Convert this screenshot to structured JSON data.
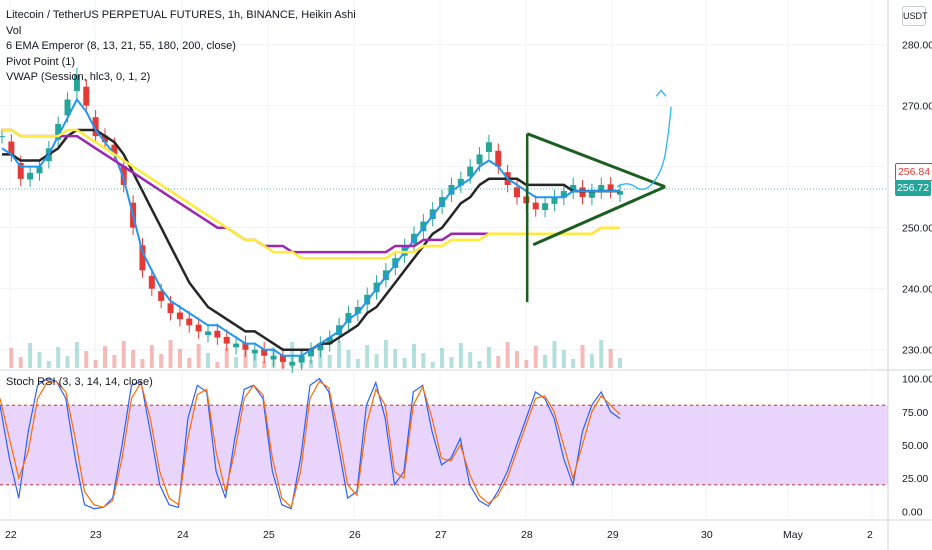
{
  "header": {
    "title": "Litecoin / TetherUS PERPETUAL FUTURES, 1h, BINANCE, Heikin Ashi",
    "indicators": [
      "Vol",
      "6 EMA Emperor (8, 13, 21, 55, 180, 200, close)",
      "Pivot Point (1)",
      "VWAP (Session, hlc3, 0, 1, 2)"
    ]
  },
  "currency_button": "USDT",
  "price_tags": {
    "last_high": "256.84",
    "last_close": "256.72"
  },
  "stoch_label": "Stoch RSI (3, 3, 14, 14, close)",
  "colors": {
    "up": "#26a69a",
    "down": "#e53935",
    "ema_black": "#262626",
    "ema_blue": "#2196f3",
    "ema_purple": "#9c27b0",
    "ema_yellow": "#ffeb3b",
    "triangle": "#1b5e20",
    "stoch_k": "#2962ff",
    "stoch_d": "#ff6d00",
    "stoch_band": "#e1c7fa"
  },
  "chart_data": [
    {
      "type": "line",
      "x_ticks": [
        "22",
        "23",
        "24",
        "25",
        "26",
        "27",
        "28",
        "29",
        "30",
        "May",
        "2"
      ],
      "y_ticks": [
        "230.00",
        "240.00",
        "250.00",
        "260.00",
        "270.00",
        "280.00"
      ],
      "ylim": [
        227,
        286
      ],
      "series": [
        {
          "style": "candle_close",
          "values": [
            265,
            262,
            258,
            259,
            260,
            263,
            267,
            271,
            275,
            270,
            265,
            264,
            262,
            257,
            250,
            243,
            240,
            238,
            236,
            235,
            234,
            233,
            233,
            232,
            231,
            231,
            230,
            230,
            229,
            229,
            228,
            228,
            229,
            230,
            231,
            232,
            234,
            236,
            237,
            239,
            241,
            243,
            245,
            247,
            249,
            251,
            253,
            255,
            257,
            258,
            260,
            262,
            264,
            260,
            257,
            255,
            254,
            253,
            254,
            255,
            256,
            257,
            255,
            256,
            257,
            256,
            256
          ]
        },
        {
          "style": "ema_black",
          "values": [
            262,
            262,
            261,
            261,
            261,
            262,
            263,
            265,
            266,
            266,
            266,
            265,
            264,
            262,
            259,
            256,
            253,
            250,
            247,
            244,
            241,
            239,
            237,
            236,
            235,
            234,
            233,
            233,
            232,
            231,
            230,
            230,
            230,
            230,
            231,
            231,
            232,
            233,
            234,
            236,
            237,
            239,
            241,
            243,
            245,
            247,
            249,
            250,
            252,
            254,
            255,
            257,
            258,
            258,
            258,
            258,
            257,
            257,
            257,
            257,
            257,
            256,
            256,
            256,
            256,
            256,
            256
          ]
        },
        {
          "style": "ema_blue",
          "values": [
            263,
            262,
            260,
            260,
            260,
            262,
            265,
            268,
            271,
            269,
            266,
            264,
            262,
            258,
            252,
            246,
            243,
            240,
            238,
            237,
            236,
            235,
            234,
            234,
            233,
            232,
            231,
            231,
            230,
            230,
            229,
            229,
            229,
            230,
            231,
            232,
            233,
            235,
            236,
            238,
            240,
            242,
            244,
            246,
            248,
            250,
            252,
            254,
            256,
            257,
            258,
            260,
            261,
            260,
            258,
            257,
            256,
            255,
            255,
            255,
            255,
            256,
            256,
            256,
            256,
            256,
            256
          ]
        },
        {
          "style": "ema_purple",
          "values": [
            266,
            266,
            265,
            265,
            265,
            265,
            265,
            265,
            265,
            264,
            263,
            262,
            261,
            260,
            259,
            258,
            257,
            256,
            255,
            254,
            253,
            252,
            251,
            250,
            250,
            249,
            248,
            248,
            247,
            247,
            247,
            246,
            246,
            246,
            246,
            246,
            246,
            246,
            246,
            246,
            246,
            246,
            247,
            247,
            247,
            248,
            248,
            248,
            249,
            249,
            249,
            249,
            249,
            249,
            249,
            249,
            249,
            249,
            249,
            249,
            249,
            249,
            249,
            249,
            250,
            250,
            250
          ]
        },
        {
          "style": "ema_yellow",
          "values": [
            266,
            266,
            265,
            265,
            265,
            265,
            265,
            266,
            266,
            265,
            264,
            263,
            262,
            261,
            260,
            259,
            258,
            257,
            256,
            255,
            254,
            253,
            252,
            251,
            250,
            249,
            248,
            248,
            247,
            246,
            246,
            246,
            245,
            245,
            245,
            245,
            245,
            245,
            245,
            245,
            245,
            245,
            246,
            246,
            246,
            247,
            247,
            247,
            248,
            248,
            248,
            248,
            249,
            249,
            249,
            249,
            249,
            249,
            249,
            249,
            249,
            249,
            249,
            249,
            250,
            250,
            250
          ]
        }
      ],
      "annotations": {
        "triangle": {
          "apex_x_date": "29.6",
          "apex_price": 256.7,
          "start_x_date": "28.0",
          "top_price": 265.4,
          "bottom_price": 247.2,
          "vertical_low": 237.8
        },
        "forecast_target": 272.5
      }
    },
    {
      "type": "line",
      "title": "Stoch RSI (3, 3, 14, 14, close)",
      "y_ticks": [
        "0.00",
        "25.00",
        "50.00",
        "75.00",
        "100.00"
      ],
      "ylim": [
        -5,
        105
      ],
      "bands": [
        20,
        80
      ],
      "series": [
        {
          "style": "stoch_k",
          "values": [
            80,
            40,
            10,
            60,
            95,
            100,
            98,
            85,
            40,
            5,
            2,
            3,
            10,
            50,
            95,
            98,
            60,
            20,
            5,
            3,
            70,
            95,
            90,
            30,
            10,
            55,
            92,
            95,
            85,
            30,
            5,
            2,
            40,
            95,
            100,
            90,
            50,
            10,
            15,
            80,
            97,
            70,
            20,
            30,
            90,
            95,
            60,
            35,
            40,
            55,
            20,
            8,
            4,
            15,
            30,
            50,
            70,
            90,
            85,
            70,
            40,
            20,
            60,
            80,
            90,
            75,
            70
          ]
        },
        {
          "style": "stoch_d",
          "values": [
            85,
            55,
            25,
            45,
            85,
            97,
            98,
            90,
            55,
            15,
            5,
            3,
            8,
            40,
            85,
            97,
            70,
            30,
            10,
            5,
            55,
            88,
            92,
            45,
            15,
            45,
            85,
            95,
            88,
            40,
            10,
            3,
            30,
            85,
            98,
            93,
            60,
            20,
            12,
            65,
            92,
            80,
            30,
            25,
            80,
            94,
            70,
            40,
            38,
            50,
            28,
            12,
            6,
            12,
            25,
            45,
            65,
            85,
            87,
            75,
            50,
            25,
            50,
            75,
            87,
            80,
            73
          ]
        }
      ]
    }
  ]
}
